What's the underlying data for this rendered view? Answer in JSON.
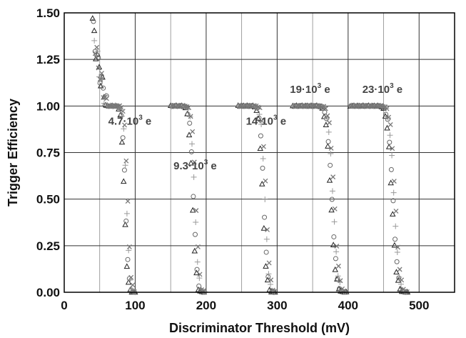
{
  "chart_data": {
    "type": "scatter",
    "title": "",
    "xlabel": "Discriminator Threshold (mV)",
    "ylabel": "Trigger Efficiency",
    "xlim": [
      0,
      550
    ],
    "ylim": [
      0,
      1.5
    ],
    "x_ticks": [
      "0",
      "100",
      "200",
      "300",
      "400",
      "500"
    ],
    "y_ticks": [
      "0.00",
      "0.25",
      "0.50",
      "0.75",
      "1.00",
      "1.25",
      "1.50"
    ],
    "grid": true,
    "annotations": [
      {
        "base": "4.7·10",
        "exp": "3",
        "unit": " e",
        "x": 62,
        "y": 0.9
      },
      {
        "base": "9.3·10",
        "exp": "3",
        "unit": " e",
        "x": 154,
        "y": 0.66
      },
      {
        "base": "14·10",
        "exp": "3",
        "unit": " e",
        "x": 256,
        "y": 0.9
      },
      {
        "base": "19·10",
        "exp": "3",
        "unit": " e",
        "x": 318,
        "y": 1.07
      },
      {
        "base": "23·10",
        "exp": "3",
        "unit": " e",
        "x": 420,
        "y": 1.07
      }
    ],
    "curves": [
      {
        "charge": "4.7·10³ e",
        "plateau_start": 60,
        "midpoint": 87,
        "width": 3.6
      },
      {
        "charge": "9.3·10³ e",
        "plateau_start": 150,
        "midpoint": 183,
        "width": 4.3
      },
      {
        "charge": "14·10³ e",
        "plateau_start": 245,
        "midpoint": 282,
        "width": 4.3
      },
      {
        "charge": "19·10³ e",
        "plateau_start": 322,
        "midpoint": 378,
        "width": 5.5
      },
      {
        "charge": "23·10³ e",
        "plateau_start": 403,
        "midpoint": 464,
        "width": 5.5
      }
    ],
    "series_markers": [
      "triangle",
      "circle",
      "plus",
      "cross"
    ],
    "low_threshold_rise": {
      "x_start": 40,
      "y_start": 1.47,
      "x_end": 60,
      "y_end": 1.0
    }
  }
}
